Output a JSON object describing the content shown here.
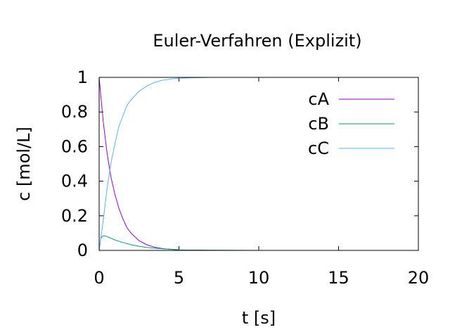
{
  "chart_data": {
    "type": "line",
    "title": "Euler-Verfahren (Explizit)",
    "xlabel": "t [s]",
    "ylabel": "c [mol/L]",
    "xlim": [
      0,
      20
    ],
    "ylim": [
      0,
      1
    ],
    "xticks": [
      0,
      5,
      10,
      15,
      20
    ],
    "yticks": [
      0,
      0.2,
      0.4,
      0.6,
      0.8,
      1
    ],
    "x_tick_labels": [
      "0",
      "5",
      "10",
      "15",
      "20"
    ],
    "y_tick_labels": [
      "0",
      "0.2",
      "0.4",
      "0.6",
      "0.8",
      "1"
    ],
    "grid": false,
    "legend_position": "top-right",
    "series": [
      {
        "name": "cA",
        "color": "#9400d3",
        "x": [
          0,
          0.25,
          0.5,
          0.75,
          1,
          1.25,
          1.5,
          1.75,
          2,
          2.5,
          3,
          3.5,
          4,
          4.5,
          5,
          6,
          7,
          8,
          10,
          12,
          14,
          16,
          18,
          20
        ],
        "y": [
          1.0,
          0.75,
          0.56,
          0.42,
          0.32,
          0.24,
          0.18,
          0.13,
          0.1,
          0.056,
          0.032,
          0.018,
          0.01,
          0.006,
          0.003,
          0.001,
          0.0,
          0.0,
          0.0,
          0.0,
          0.0,
          0.0,
          0.0,
          0.0
        ]
      },
      {
        "name": "cB",
        "color": "#009e73",
        "x": [
          0,
          0.1,
          0.25,
          0.5,
          0.75,
          1,
          1.5,
          2,
          2.5,
          3,
          4,
          5,
          6,
          8,
          10,
          12,
          14,
          16,
          18,
          20
        ],
        "y": [
          0.0,
          0.07,
          0.085,
          0.08,
          0.07,
          0.06,
          0.045,
          0.033,
          0.024,
          0.017,
          0.009,
          0.004,
          0.002,
          0.001,
          0.0,
          0.0,
          0.0,
          0.0,
          0.0,
          0.0
        ]
      },
      {
        "name": "cC",
        "color": "#56b4e9",
        "x": [
          0,
          0.25,
          0.5,
          0.75,
          1,
          1.25,
          1.5,
          1.75,
          2,
          2.5,
          3,
          3.5,
          4,
          4.5,
          5,
          6,
          7,
          8,
          10,
          12,
          14,
          16,
          18,
          20
        ],
        "y": [
          0.0,
          0.17,
          0.36,
          0.51,
          0.62,
          0.72,
          0.78,
          0.84,
          0.87,
          0.92,
          0.951,
          0.972,
          0.984,
          0.991,
          0.995,
          0.998,
          1.0,
          1.0,
          1.0,
          1.0,
          1.0,
          1.0,
          1.0,
          1.0
        ]
      }
    ]
  }
}
